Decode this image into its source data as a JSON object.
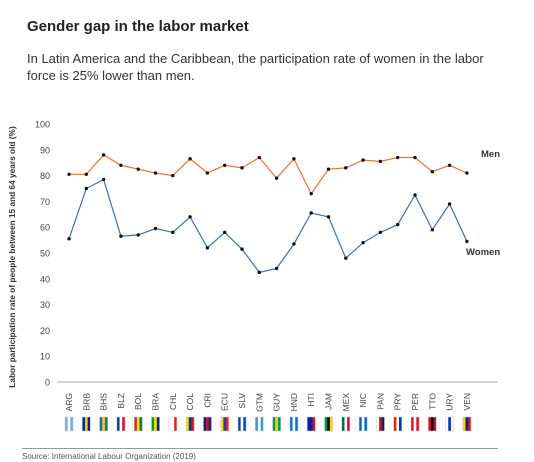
{
  "header": {
    "title": "Gender gap in the labor market",
    "subtitle": "In Latin America and the Caribbean, the participation rate of women in the labor force is 25% lower than men."
  },
  "chart_data": {
    "type": "line",
    "categories": [
      "ARG",
      "BRB",
      "BHS",
      "BLZ",
      "BOL",
      "BRA",
      "CHL",
      "COL",
      "CRI",
      "ECU",
      "SLV",
      "GTM",
      "GUY",
      "HND",
      "HTI",
      "JAM",
      "MEX",
      "NIC",
      "PAN",
      "PRY",
      "PER",
      "TTO",
      "URY",
      "VEN"
    ],
    "series": [
      {
        "name": "Men",
        "color": "#e8743b",
        "values": [
          80.5,
          80.5,
          88.0,
          84.0,
          82.5,
          81.0,
          80.0,
          86.5,
          81.0,
          84.0,
          83.0,
          87.0,
          79.0,
          86.5,
          73.0,
          82.5,
          83.0,
          86.0,
          85.5,
          87.0,
          87.0,
          81.5,
          84.0,
          81.0
        ]
      },
      {
        "name": "Women",
        "color": "#3f6db4",
        "values": [
          55.5,
          75.0,
          78.5,
          56.5,
          57.0,
          59.5,
          58.0,
          64.0,
          52.0,
          58.0,
          51.5,
          42.5,
          44.0,
          53.5,
          65.5,
          64.0,
          48.0,
          54.0,
          58.0,
          61.0,
          72.5,
          59.0,
          69.0,
          54.5
        ]
      }
    ],
    "ylabel": "Labor participation rate of people between 15 and 64 years old (%)",
    "xlabel": "",
    "ylim": [
      0,
      100
    ],
    "yticks": [
      0,
      10,
      20,
      30,
      40,
      50,
      60,
      70,
      80,
      90,
      100
    ],
    "grid": false,
    "legend": "inline-right"
  },
  "flags": [
    [
      "#74acdf",
      "#ffffff",
      "#74acdf"
    ],
    [
      "#00267f",
      "#ffc726",
      "#00267f"
    ],
    [
      "#00778b",
      "#ffc72c",
      "#00778b"
    ],
    [
      "#003f87",
      "#ffffff",
      "#ce1126"
    ],
    [
      "#d52b1e",
      "#f9e300",
      "#007934"
    ],
    [
      "#009c3b",
      "#ffdf00",
      "#002776"
    ],
    [
      "#ffffff",
      "#ffffff",
      "#d52b1e"
    ],
    [
      "#fcd116",
      "#003893",
      "#ce1126"
    ],
    [
      "#002b7f",
      "#ce1126",
      "#002b7f"
    ],
    [
      "#ffdd00",
      "#034ea2",
      "#ed1c24"
    ],
    [
      "#0047ab",
      "#ffffff",
      "#0047ab"
    ],
    [
      "#4997d0",
      "#ffffff",
      "#4997d0"
    ],
    [
      "#009e49",
      "#fcd116",
      "#009e49"
    ],
    [
      "#0073cf",
      "#ffffff",
      "#0073cf"
    ],
    [
      "#00209f",
      "#00209f",
      "#d21034"
    ],
    [
      "#009b3a",
      "#000000",
      "#fed100"
    ],
    [
      "#006847",
      "#ffffff",
      "#ce1126"
    ],
    [
      "#0067c6",
      "#ffffff",
      "#0067c6"
    ],
    [
      "#ffffff",
      "#da121a",
      "#072357"
    ],
    [
      "#d52b1e",
      "#ffffff",
      "#0038a8"
    ],
    [
      "#d91023",
      "#ffffff",
      "#d91023"
    ],
    [
      "#ce1126",
      "#000000",
      "#ce1126"
    ],
    [
      "#ffffff",
      "#0038a8",
      "#ffffff"
    ],
    [
      "#ffcc00",
      "#00247d",
      "#cf142b"
    ]
  ],
  "footer": {
    "source": "Source: International Labour Organization (2019)"
  }
}
